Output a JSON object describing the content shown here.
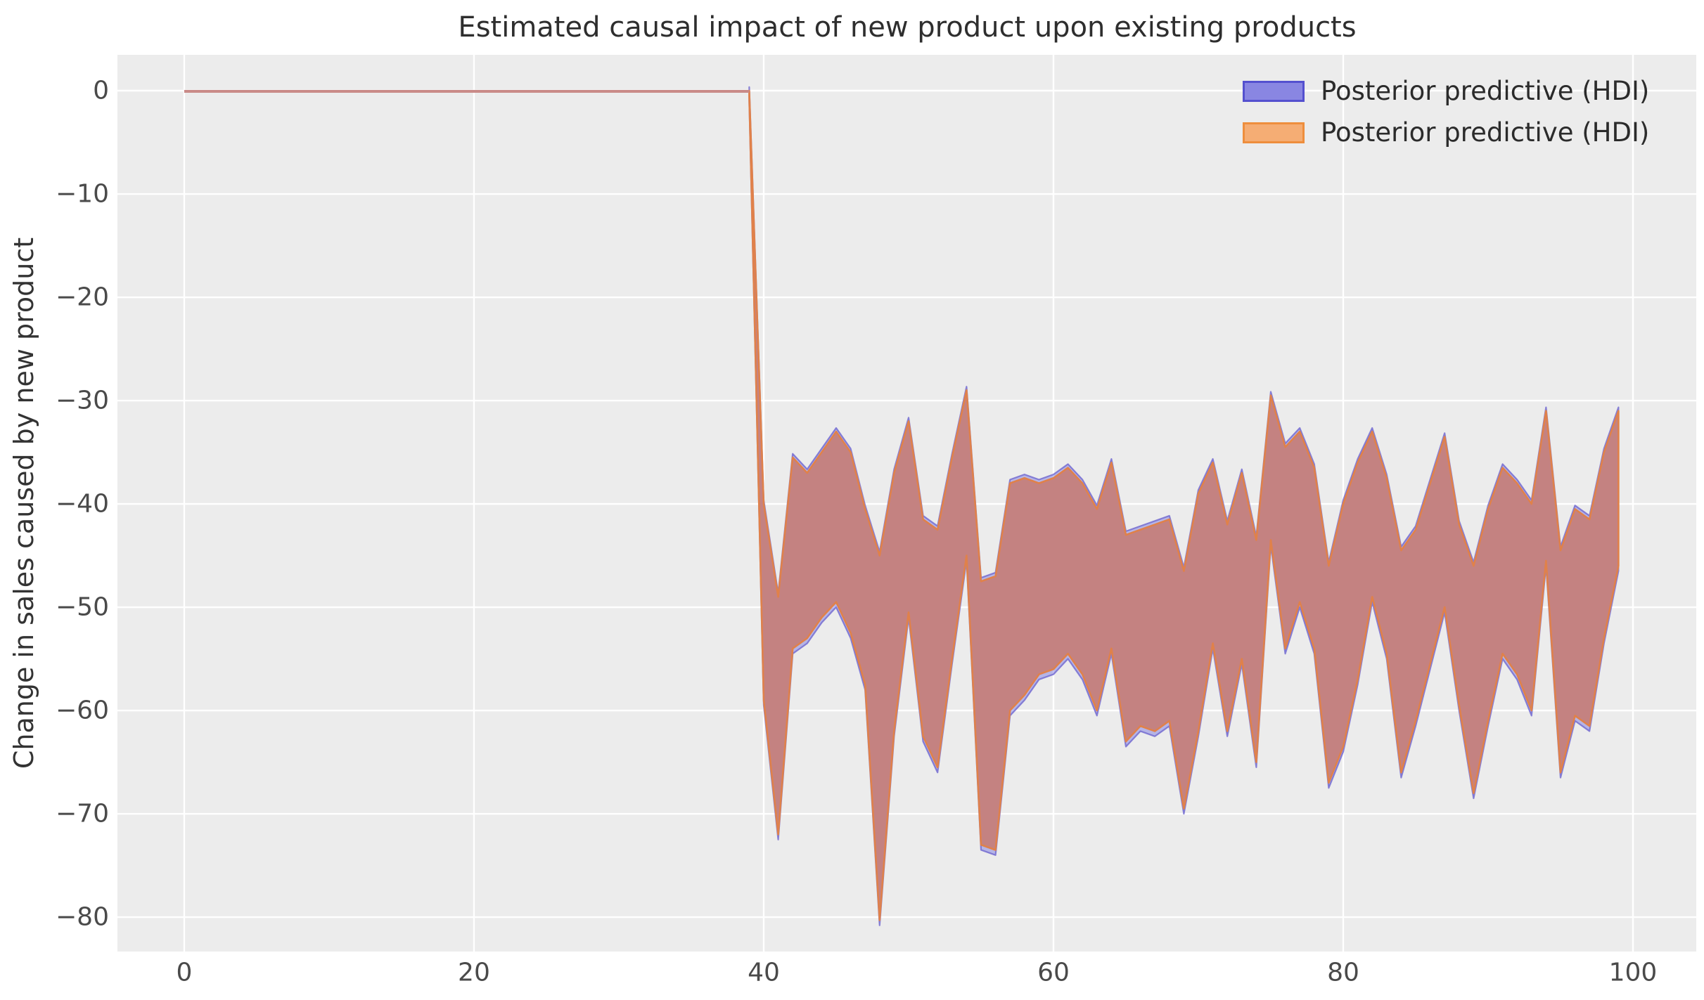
{
  "title": "Estimated causal impact of new product upon existing products",
  "y_axis_label": "Change in sales caused by new product",
  "legend": {
    "items": [
      {
        "label": "Posterior predictive (HDI)",
        "swatch_fill": "#8986e2",
        "swatch_edge": "#5450cf"
      },
      {
        "label": "Posterior predictive (HDI)",
        "swatch_fill": "#f5ad74",
        "swatch_edge": "#ee8e3d"
      }
    ]
  },
  "colors": {
    "figure_background": "#ffffff",
    "plot_background": "#ececec",
    "gridline": "#ffffff",
    "band_overlap_fill": "#c48281",
    "band_orange_edge": "#e0814a",
    "band_blue_edge": "#6f66cf",
    "band_blue_fill": "rgba(115,112,224,0.45)",
    "pre_period_line": "#c98a88",
    "title_text": "#2e2e2e",
    "tick_text": "#4a4a4a"
  },
  "chart_data": {
    "type": "area",
    "title": "Estimated causal impact of new product upon existing products",
    "xlabel": "",
    "ylabel": "Change in sales caused by new product",
    "x_ticks": [
      0,
      20,
      40,
      60,
      80,
      100
    ],
    "x_tick_labels": [
      "0",
      "20",
      "40",
      "60",
      "80",
      "100"
    ],
    "y_ticks": [
      0,
      -10,
      -20,
      -30,
      -40,
      -50,
      -60,
      -70,
      -80
    ],
    "y_tick_labels": [
      "0",
      "−10",
      "−20",
      "−30",
      "−40",
      "−50",
      "−60",
      "−70",
      "−80"
    ],
    "xlim": [
      -4.61,
      104.37
    ],
    "ylim": [
      -83.33,
      3.47
    ],
    "grid": true,
    "legend_position": "upper right",
    "pre_period": {
      "x_start": 0,
      "x_end": 39,
      "value": 0
    },
    "series": [
      {
        "name": "Posterior predictive (HDI) band",
        "x": [
          39,
          40,
          41,
          42,
          43,
          44,
          45,
          46,
          47,
          48,
          49,
          50,
          51,
          52,
          53,
          54,
          55,
          56,
          57,
          58,
          59,
          60,
          61,
          62,
          63,
          64,
          65,
          66,
          67,
          68,
          69,
          70,
          71,
          72,
          73,
          74,
          75,
          76,
          77,
          78,
          79,
          80,
          81,
          82,
          83,
          84,
          85,
          86,
          87,
          88,
          89,
          90,
          91,
          92,
          93,
          94,
          95,
          96,
          97,
          98,
          99
        ],
        "upper": [
          0,
          -40,
          -49,
          -35.5,
          -37,
          -35,
          -33,
          -35,
          -40.5,
          -45,
          -37,
          -32,
          -41.5,
          -42.5,
          -35.5,
          -29,
          -47.5,
          -47,
          -38,
          -37.5,
          -38,
          -37.5,
          -36.5,
          -38,
          -40.5,
          -36,
          -43,
          -42.5,
          -42,
          -41.5,
          -46.5,
          -39,
          -36,
          -42,
          -37,
          -43.5,
          -29.5,
          -34.5,
          -33,
          -36.5,
          -46,
          -40,
          -36,
          -33,
          -37.5,
          -44.5,
          -42.5,
          -38,
          -33.5,
          -42,
          -46,
          -40.5,
          -36.5,
          -38,
          -40,
          -31,
          -44.5,
          -40.5,
          -41.5,
          -35,
          -31
        ],
        "lower": [
          -0.5,
          -59,
          -72,
          -54,
          -53,
          -51,
          -49.5,
          -52.5,
          -57.5,
          -80.3,
          -62,
          -50.5,
          -62.5,
          -65.5,
          -55,
          -45,
          -73,
          -73.5,
          -60,
          -58.5,
          -56.5,
          -56,
          -54.5,
          -56.5,
          -60,
          -54,
          -63,
          -61.5,
          -62,
          -61,
          -69.5,
          -62,
          -53.5,
          -62,
          -55,
          -65,
          -43.5,
          -54,
          -49.5,
          -54,
          -67,
          -63.5,
          -57,
          -49,
          -54.5,
          -66,
          -61,
          -55.5,
          -50,
          -59.5,
          -68,
          -61,
          -54.5,
          -56.5,
          -60,
          -45.5,
          -66,
          -60.5,
          -61.5,
          -53,
          -46
        ]
      }
    ]
  }
}
